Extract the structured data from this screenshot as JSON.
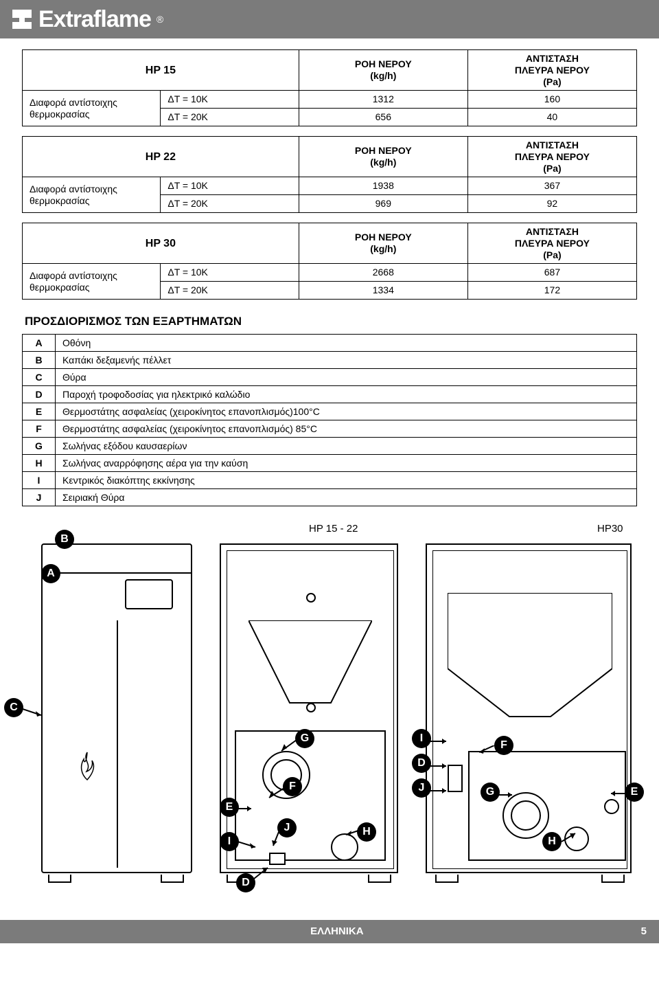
{
  "brand": {
    "name": "Extraflame",
    "registered": "®"
  },
  "hp_blocks": [
    {
      "model": "HP 15",
      "col1_header": "ΡΟΗ ΝΕΡΟΥ\n(kg/h)",
      "col2_header": "ΑΝΤΙΣΤΑΣΗ\nΠΛΕΥΡΑ ΝΕΡΟΥ\n(Pa)",
      "row_label": "Διαφορά αντίστοιχης θερμοκρασίας",
      "rows": [
        {
          "dt": "ΔT = 10K",
          "flow": "1312",
          "res": "160"
        },
        {
          "dt": "ΔT = 20K",
          "flow": "656",
          "res": "40"
        }
      ]
    },
    {
      "model": "HP 22",
      "col1_header": "ΡΟΗ ΝΕΡΟΥ\n(kg/h)",
      "col2_header": "ΑΝΤΙΣΤΑΣΗ\nΠΛΕΥΡΑ ΝΕΡΟΥ\n(Pa)",
      "row_label": "Διαφορά αντίστοιχης θερμοκρασίας",
      "rows": [
        {
          "dt": "ΔT = 10K",
          "flow": "1938",
          "res": "367"
        },
        {
          "dt": "ΔT = 20K",
          "flow": "969",
          "res": "92"
        }
      ]
    },
    {
      "model": "HP 30",
      "col1_header": "ΡΟΗ ΝΕΡΟΥ\n(kg/h)",
      "col2_header": "ΑΝΤΙΣΤΑΣΗ\nΠΛΕΥΡΑ ΝΕΡΟΥ\n(Pa)",
      "row_label": "Διαφορά αντίστοιχης θερμοκρασίας",
      "rows": [
        {
          "dt": "ΔT = 10K",
          "flow": "2668",
          "res": "687"
        },
        {
          "dt": "ΔT = 20K",
          "flow": "1334",
          "res": "172"
        }
      ]
    }
  ],
  "components_title": "ΠΡΟΣΔΙΟΡΙΣΜΟΣ ΤΩΝ ΕΞΑΡΤΗΜΑΤΩΝ",
  "components": [
    {
      "key": "A",
      "label": "Οθόνη"
    },
    {
      "key": "B",
      "label": "Καπάκι δεξαμενής πέλλετ"
    },
    {
      "key": "C",
      "label": "Θύρα"
    },
    {
      "key": "D",
      "label": "Παροχή τροφοδοσίας για ηλεκτρικό καλώδιο"
    },
    {
      "key": "E",
      "label": "Θερμοστάτης ασφαλείας (χειροκίνητος επανοπλισμός)100°C"
    },
    {
      "key": "F",
      "label": "Θερμοστάτης ασφαλείας (χειροκίνητος επανοπλισμός) 85°C"
    },
    {
      "key": "G",
      "label": "Σωλήνας εξόδου καυσαερίων"
    },
    {
      "key": "H",
      "label": "Σωλήνας αναρρόφησης αέρα για την καύση"
    },
    {
      "key": "I",
      "label": "Κεντρικός διακόπτης εκκίνησης"
    },
    {
      "key": "J",
      "label": "Σειριακή Θύρα"
    }
  ],
  "diagram": {
    "label_left": "HP 15 - 22",
    "label_right": "HP30"
  },
  "footer": {
    "language": "ΕΛΛΗΝΙΚΑ",
    "page": "5"
  },
  "colors": {
    "header_bg": "#7b7b7b",
    "text": "#000000",
    "bg": "#ffffff"
  },
  "fonts": {
    "base_size_pt": 10,
    "title_size_pt": 12,
    "brand_size_pt": 26,
    "family": "Arial"
  }
}
